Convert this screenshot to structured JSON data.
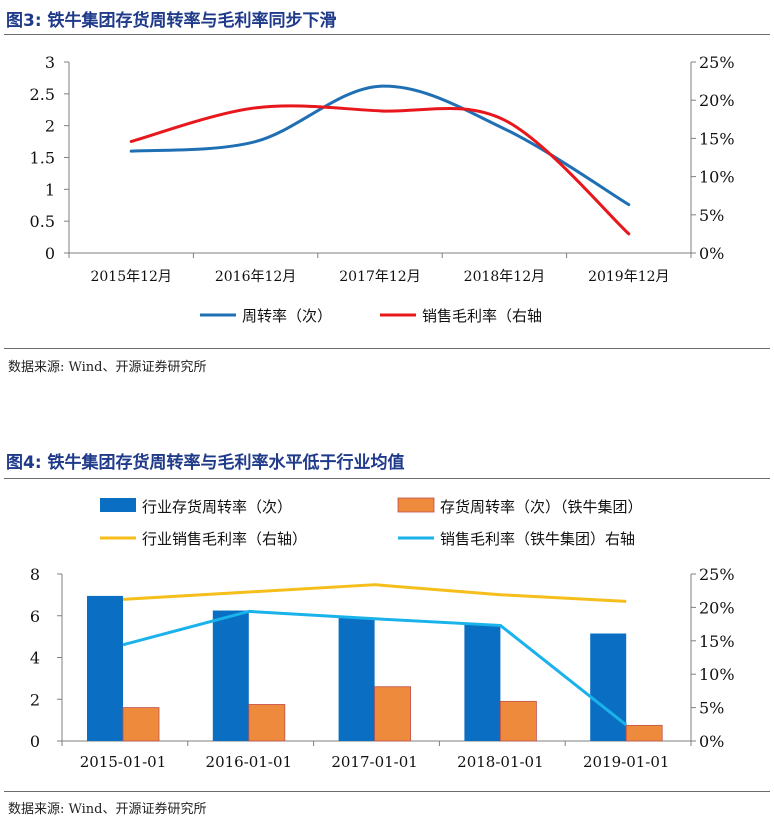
{
  "figure3": {
    "title": "图3: 铁牛集团存货周转率与毛利率同步下滑",
    "source": "数据来源: Wind、开源证券研究所"
  },
  "figure4": {
    "title": "图4: 铁牛集团存货周转率与毛利率水平低于行业均值",
    "source": "数据来源: Wind、开源证券研究所"
  },
  "chart_data": [
    {
      "type": "line",
      "title": "铁牛集团存货周转率与毛利率同步下滑",
      "categories": [
        "2015年12月",
        "2016年12月",
        "2017年12月",
        "2018年12月",
        "2019年12月"
      ],
      "y_left": {
        "min": 0,
        "max": 3,
        "ticks": [
          "0",
          "0.5",
          "1",
          "1.5",
          "2",
          "2.5",
          "3"
        ]
      },
      "y_right": {
        "min": 0,
        "max": 25,
        "ticks": [
          "0%",
          "5%",
          "10%",
          "15%",
          "20%",
          "25%"
        ]
      },
      "series": [
        {
          "name": "周转率（次）",
          "axis": "left",
          "color": "#1f6fb4",
          "values": [
            1.6,
            1.75,
            2.62,
            1.95,
            0.76
          ]
        },
        {
          "name": "销售毛利率（右轴",
          "axis": "right",
          "color": "#e8171b",
          "values": [
            14.6,
            19.0,
            18.6,
            17.4,
            2.5
          ]
        }
      ],
      "legend_position": "bottom"
    },
    {
      "type": "bar",
      "title": "铁牛集团存货周转率与毛利率水平低于行业均值",
      "categories": [
        "2015-01-01",
        "2016-01-01",
        "2017-01-01",
        "2018-01-01",
        "2019-01-01"
      ],
      "y_left": {
        "min": 0,
        "max": 8,
        "ticks": [
          "0",
          "2",
          "4",
          "6",
          "8"
        ]
      },
      "y_right": {
        "min": 0,
        "max": 25,
        "ticks": [
          "0%",
          "5%",
          "10%",
          "15%",
          "20%",
          "25%"
        ]
      },
      "bar_series": [
        {
          "name": "行业存货周转率（次）",
          "color": "#0a6fc2",
          "values": [
            6.95,
            6.25,
            5.9,
            5.6,
            5.15
          ]
        },
        {
          "name": "存货周转率（次）（铁牛集团）",
          "color": "#ee8a3c",
          "values": [
            1.6,
            1.75,
            2.6,
            1.9,
            0.75
          ]
        }
      ],
      "line_series": [
        {
          "name": "行业销售毛利率（右轴）",
          "color": "#f5be1a",
          "values": [
            21.2,
            22.3,
            23.4,
            21.9,
            20.9
          ]
        },
        {
          "name": "销售毛利率（铁牛集团）右轴",
          "color": "#1ab2ea",
          "values": [
            14.4,
            19.4,
            18.3,
            17.3,
            2.4
          ]
        }
      ],
      "legend_position": "top"
    }
  ]
}
